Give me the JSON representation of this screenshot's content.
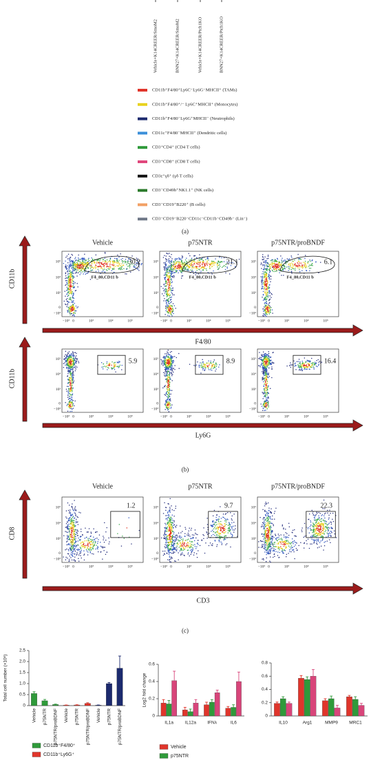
{
  "panel_a": {
    "columns": [
      "Vehicle+K14CREER/SmoM2",
      "BNN27+K14CREER/SmoM2",
      "Vehicle+K14CREER/Ptch1KO",
      "BNN27+K14CREER/Ptch1KO"
    ],
    "legend": [
      {
        "label": "CD11b⁺F4/80⁺Ly6C⁻Ly6G⁻MHCII⁺ (TAMs)",
        "color": "#e0352b"
      },
      {
        "label": "CD11b⁺F4/80⁺/⁻ Ly6C⁺MHCII⁺ (Monocytes)",
        "color": "#e8d21e"
      },
      {
        "label": "CD11b⁺F4/80⁻Ly6G⁺MHCII⁻ (Neutrophils)",
        "color": "#1c2a6e"
      },
      {
        "label": "CD11c⁺F4/80⁻MHCII⁺ (Dendritic cells)",
        "color": "#3b8fd9"
      },
      {
        "label": "CD3⁺CD4⁺ (CD4 T cells)",
        "color": "#2f9a3a"
      },
      {
        "label": "CD3⁺CD8⁺ (CD8 T cells)",
        "color": "#e0477c"
      },
      {
        "label": "CD3ε⁺γδ⁺ (γδ T cells)",
        "color": "#111111"
      },
      {
        "label": "CD3⁻CD49b⁺NK1.1⁺ (NK cells)",
        "color": "#2b7a2b"
      },
      {
        "label": "CD3⁻CD19⁺B220⁺ (B cells)",
        "color": "#f2a064"
      },
      {
        "label": "CD3⁻CD19⁻B220⁻CD11c⁻CD11b⁻CD49b⁻ (Lin⁻)",
        "color": "#6f7888"
      }
    ],
    "caption": "(a)"
  },
  "flow_axis_ticks": [
    "−10³",
    "0",
    "10³",
    "10⁴",
    "10⁵"
  ],
  "panel_b": {
    "titles": [
      "Vehicle",
      "p75NTR",
      "p75NTR/proBNDF"
    ],
    "rows": [
      {
        "y_label": "CD11b",
        "x_label": "F4/80",
        "gates": [
          30.2,
          21.1,
          6.1
        ],
        "gate_name": "F4_80,CD11 b"
      },
      {
        "y_label": "CD11b",
        "x_label": "Ly6G",
        "gates": [
          5.9,
          8.9,
          16.4
        ]
      }
    ],
    "caption": "(b)"
  },
  "panel_c": {
    "titles": [
      "Vehicle",
      "p75NTR",
      "p75NTR/proBNDF"
    ],
    "y_label": "CD8",
    "x_label": "CD3",
    "gates": [
      1.2,
      9.7,
      22.3
    ],
    "caption": "(c)"
  },
  "chart_data": [
    {
      "type": "bar",
      "y_label": "Total cell number (×10⁶)",
      "categories": [
        "Vehicle",
        "p75NTR",
        "p75NTR/proBDNF",
        "Vehicle",
        "p75NTR",
        "p75NTR/proBDNF",
        "Vehicle",
        "p75NTR",
        "p75NTR/proBDNF"
      ],
      "series": [
        {
          "name": "CD11b⁺F4/80⁺",
          "color": "#2f9a3a",
          "values": [
            0.55,
            0.22,
            0.05,
            null,
            null,
            null,
            null,
            null,
            null
          ],
          "errors": [
            0.08,
            0.06,
            0.02,
            null,
            null,
            null,
            null,
            null,
            null
          ]
        },
        {
          "name": "CD11b⁺Ly6G⁺",
          "color": "#e0352b",
          "values": [
            null,
            null,
            null,
            0.02,
            0.03,
            0.1,
            null,
            null,
            null
          ],
          "errors": [
            null,
            null,
            null,
            0.01,
            0.01,
            0.03,
            null,
            null,
            null
          ]
        },
        {
          "color": "#1c2a6e",
          "values": [
            null,
            null,
            null,
            null,
            null,
            null,
            0.02,
            1.0,
            1.7
          ],
          "errors": [
            null,
            null,
            null,
            null,
            null,
            null,
            0.01,
            0.05,
            0.55
          ]
        }
      ],
      "ylim": [
        0,
        2.5
      ],
      "yticks": [
        0,
        0.5,
        {
          "value": 1,
          "label": "1.0"
        },
        1.5,
        {
          "value": 2,
          "label": "2.0"
        },
        2.5
      ]
    },
    {
      "type": "bar",
      "y_label": "Log2 fold change",
      "categories": [
        "IL1a",
        "IL12a",
        "IFNλ",
        "IL6"
      ],
      "series": [
        {
          "name": "Vehicle",
          "color": "#e0352b",
          "values": [
            0.15,
            0.07,
            0.13,
            0.09
          ],
          "errors": [
            0.04,
            0.03,
            0.03,
            0.02
          ]
        },
        {
          "name": "p75NTR",
          "color": "#2f9a3a",
          "values": [
            0.14,
            0.05,
            0.16,
            0.1
          ],
          "errors": [
            0.04,
            0.03,
            0.03,
            0.03
          ]
        },
        {
          "color": "#d8457a",
          "values": [
            0.41,
            0.15,
            0.27,
            0.4
          ],
          "errors": [
            0.11,
            0.04,
            0.03,
            0.11
          ]
        }
      ],
      "ylim": [
        0,
        0.6
      ],
      "yticks": [
        0,
        0.2,
        0.4,
        0.6
      ]
    },
    {
      "type": "bar",
      "categories": [
        "IL10",
        "Arg1",
        "MMP9",
        "MRC1"
      ],
      "series": [
        {
          "color": "#e0352b",
          "values": [
            0.19,
            0.57,
            0.23,
            0.29
          ],
          "errors": [
            0.02,
            0.04,
            0.03,
            0.02
          ]
        },
        {
          "color": "#2f9a3a",
          "values": [
            0.26,
            0.55,
            0.26,
            0.25
          ],
          "errors": [
            0.03,
            0.04,
            0.04,
            0.04
          ]
        },
        {
          "color": "#d8457a",
          "values": [
            0.19,
            0.6,
            0.12,
            0.16
          ],
          "errors": [
            0.02,
            0.1,
            0.04,
            0.03
          ]
        }
      ],
      "ylim": [
        0,
        0.8
      ],
      "yticks": [
        0,
        0.2,
        0.4,
        0.6,
        0.8
      ]
    }
  ]
}
